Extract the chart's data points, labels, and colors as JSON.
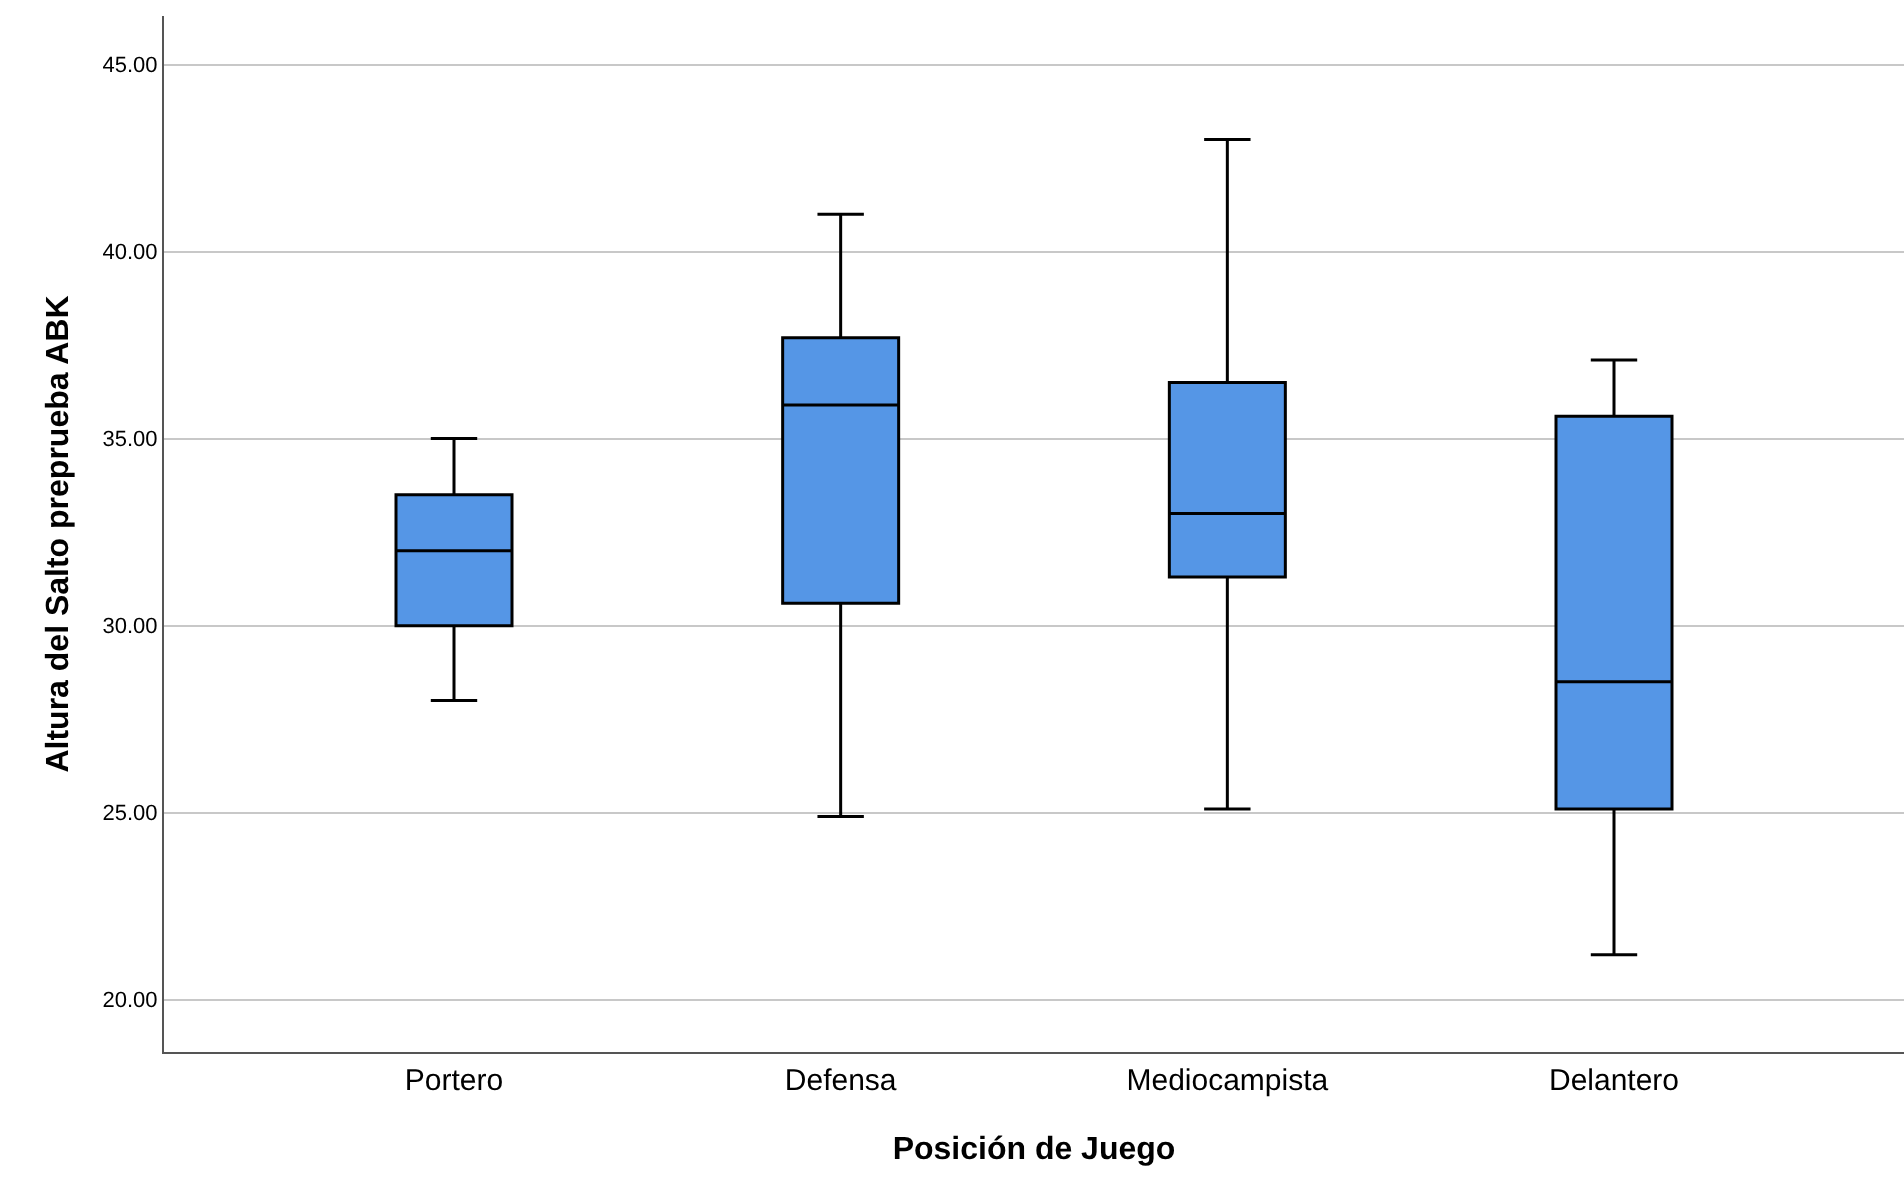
{
  "chart_data": {
    "type": "box",
    "xlabel": "Posición de Juego",
    "ylabel": "Altura del Salto preprueba ABK",
    "categories": [
      "Portero",
      "Defensa",
      "Mediocampista",
      "Delantero"
    ],
    "color": "#5596e6",
    "boxes": [
      {
        "low": 28.0,
        "q1": 30.0,
        "median": 32.0,
        "q3": 33.5,
        "high": 35.0
      },
      {
        "low": 24.9,
        "q1": 30.6,
        "median": 35.9,
        "q3": 37.7,
        "high": 41.0
      },
      {
        "low": 25.1,
        "q1": 31.3,
        "median": 33.0,
        "q3": 36.5,
        "high": 43.0
      },
      {
        "low": 21.2,
        "q1": 25.1,
        "median": 28.5,
        "q3": 35.6,
        "high": 37.1
      }
    ],
    "ylim": [
      18.6,
      46.3
    ],
    "yticks": [
      {
        "value": 20,
        "label": "20.00"
      },
      {
        "value": 25,
        "label": "25.00"
      },
      {
        "value": 30,
        "label": "30.00"
      },
      {
        "value": 35,
        "label": "35.00"
      },
      {
        "value": 40,
        "label": "40.00"
      },
      {
        "value": 45,
        "label": "45.00"
      }
    ],
    "grid": "y",
    "legend": false
  }
}
